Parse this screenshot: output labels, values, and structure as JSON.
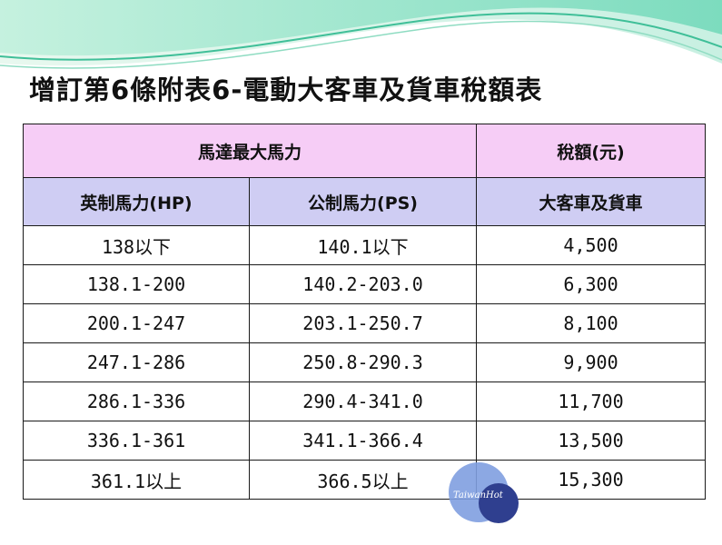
{
  "slide": {
    "title": "增訂第6條附表6-電動大客車及貨車稅額表"
  },
  "table": {
    "group_header_power": "馬達最大馬力",
    "group_header_tax": "稅額(元)",
    "col_hp": "英制馬力(HP)",
    "col_ps": "公制馬力(PS)",
    "col_vehicle": "大客車及貨車",
    "rows": [
      {
        "hp": "138以下",
        "ps": "140.1以下",
        "tax": "4,500"
      },
      {
        "hp": "138.1-200",
        "ps": "140.2-203.0",
        "tax": "6,300"
      },
      {
        "hp": "200.1-247",
        "ps": "203.1-250.7",
        "tax": "8,100"
      },
      {
        "hp": "247.1-286",
        "ps": "250.8-290.3",
        "tax": "9,900"
      },
      {
        "hp": "286.1-336",
        "ps": "290.4-341.0",
        "tax": "11,700"
      },
      {
        "hp": "336.1-361",
        "ps": "341.1-366.4",
        "tax": "13,500"
      },
      {
        "hp": "361.1以上",
        "ps": "366.5以上",
        "tax": "15,300"
      }
    ]
  },
  "watermark": {
    "logo_text": "TaiwanHot"
  },
  "colors": {
    "header_pink": "#f6cdf6",
    "header_lavender": "#cfcdf3",
    "wave_green": "#5fd3b0",
    "logo_blue": "#2f3f8f"
  }
}
